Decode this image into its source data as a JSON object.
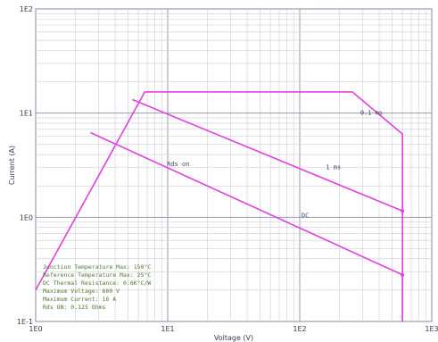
{
  "chart_data": {
    "type": "line",
    "title": "",
    "xlabel": "Voltage (V)",
    "ylabel": "Current (A)",
    "x_scale": "log",
    "y_scale": "log",
    "xlim": [
      1,
      1000
    ],
    "ylim": [
      0.1,
      100
    ],
    "grid": true,
    "x_ticks": [
      "1E0",
      "1E1",
      "1E2",
      "1E3"
    ],
    "y_ticks": [
      "1E-1",
      "1E0",
      "1E1",
      "1E2"
    ],
    "series_color": "#e040e0",
    "series": [
      {
        "label": "0.1 ms",
        "label_at": [
          350,
          9.6
        ],
        "points": [
          [
            6.7,
            16
          ],
          [
            250,
            16
          ],
          [
            600,
            6.3
          ],
          [
            600,
            0.1
          ]
        ]
      },
      {
        "label": "1 ms",
        "label_at": [
          180,
          2.9
        ],
        "points": [
          [
            5.4,
            13.5
          ],
          [
            600,
            1.15
          ]
        ]
      },
      {
        "label": "DC",
        "label_at": [
          110,
          1.0
        ],
        "points": [
          [
            2.6,
            6.5
          ],
          [
            600,
            0.28
          ],
          [
            600,
            0.1
          ]
        ]
      },
      {
        "label": "Rds on",
        "label_at": [
          12,
          3.1
        ],
        "points": [
          [
            1,
            0.2
          ],
          [
            6.7,
            16
          ]
        ]
      }
    ],
    "annotation_lines": [
      "Junction Temperature Max: 150°C",
      "Reference Temperature Max: 25°C",
      "DC Thermal Resistance: 0.6K°C/W",
      "Maximum Voltage: 600 V",
      "Maximum Current: 16 A",
      "Rds ON: 0.125 Ohms"
    ]
  }
}
